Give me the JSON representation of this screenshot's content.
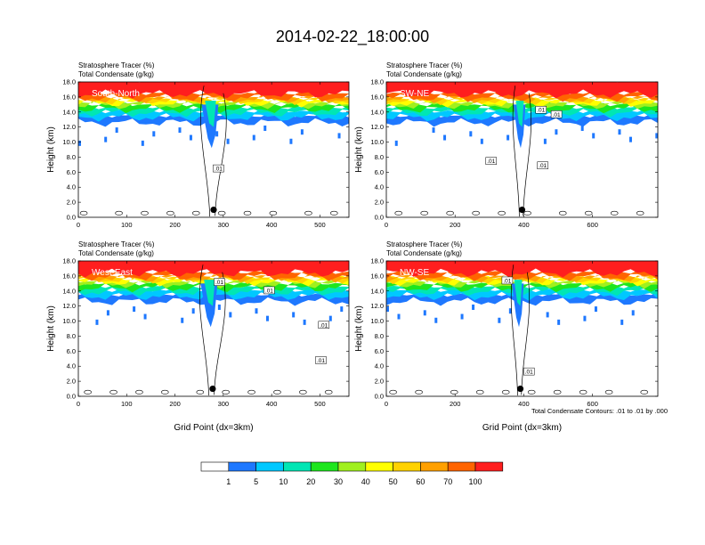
{
  "title": "2014-02-22_18:00:00",
  "panel_header": {
    "line1": "Stratosphere Tracer   (%)",
    "line2": "Total Condensate   (g/kg)"
  },
  "footnote": "Total Condensate Contours: .01 to .01 by .000",
  "xlabel": "Grid Point (dx=3km)",
  "ylabel": "Height (km)",
  "colors": {
    "bins": [
      "#ffffff",
      "#1e78ff",
      "#00c8ff",
      "#00e6b4",
      "#1ee61e",
      "#a0f01e",
      "#ffff00",
      "#ffd200",
      "#ffa000",
      "#ff6400",
      "#ff1e1e"
    ],
    "contour": "#000000",
    "marker": "#000000"
  },
  "colorbar": {
    "labels": [
      "1",
      "5",
      "10",
      "20",
      "30",
      "40",
      "50",
      "60",
      "70",
      "100"
    ]
  },
  "chart_data": [
    {
      "type": "heatmap",
      "name": "South-North",
      "xlim": [
        0,
        560
      ],
      "ylim": [
        0,
        18
      ],
      "xticks": [
        0,
        100,
        200,
        300,
        400,
        500
      ],
      "yticks": [
        "0.0",
        "2.0",
        "4.0",
        "6.0",
        "8.0",
        "10.0",
        "12.0",
        "14.0",
        "16.0",
        "18.0"
      ],
      "marker": {
        "x": 280,
        "y": 1.0
      },
      "contour_labels": [
        {
          "text": ".01",
          "x": 290,
          "y": 6.5
        }
      ]
    },
    {
      "type": "heatmap",
      "name": "SW-NE",
      "xlim": [
        0,
        790
      ],
      "ylim": [
        0,
        18
      ],
      "xticks": [
        0,
        200,
        400,
        600
      ],
      "yticks": [
        "0.0",
        "2.0",
        "4.0",
        "6.0",
        "8.0",
        "10.0",
        "12.0",
        "14.0",
        "16.0",
        "18.0"
      ],
      "marker": {
        "x": 395,
        "y": 1.0
      },
      "contour_labels": [
        {
          "text": ".01",
          "x": 305,
          "y": 7.5
        },
        {
          "text": ".01",
          "x": 450,
          "y": 14.3
        },
        {
          "text": ".01",
          "x": 495,
          "y": 13.7
        },
        {
          "text": ".01",
          "x": 455,
          "y": 6.9
        }
      ]
    },
    {
      "type": "heatmap",
      "name": "West-East",
      "xlim": [
        0,
        560
      ],
      "ylim": [
        0,
        18
      ],
      "xticks": [
        0,
        100,
        200,
        300,
        400,
        500
      ],
      "yticks": [
        "0.0",
        "2.0",
        "4.0",
        "6.0",
        "8.0",
        "10.0",
        "12.0",
        "14.0",
        "16.0",
        "18.0"
      ],
      "marker": {
        "x": 278,
        "y": 1.0
      },
      "contour_labels": [
        {
          "text": ".01",
          "x": 292,
          "y": 15.2
        },
        {
          "text": ".01",
          "x": 395,
          "y": 14.1
        },
        {
          "text": ".01",
          "x": 508,
          "y": 9.5
        },
        {
          "text": ".01",
          "x": 502,
          "y": 4.8
        }
      ]
    },
    {
      "type": "heatmap",
      "name": "NW-SE",
      "xlim": [
        0,
        790
      ],
      "ylim": [
        0,
        18
      ],
      "xticks": [
        0,
        200,
        400,
        600
      ],
      "yticks": [
        "0.0",
        "2.0",
        "4.0",
        "6.0",
        "8.0",
        "10.0",
        "12.0",
        "14.0",
        "16.0",
        "18.0"
      ],
      "marker": {
        "x": 390,
        "y": 1.0
      },
      "contour_labels": [
        {
          "text": ".01",
          "x": 352,
          "y": 15.4
        },
        {
          "text": ".01",
          "x": 415,
          "y": 3.3
        }
      ]
    }
  ]
}
